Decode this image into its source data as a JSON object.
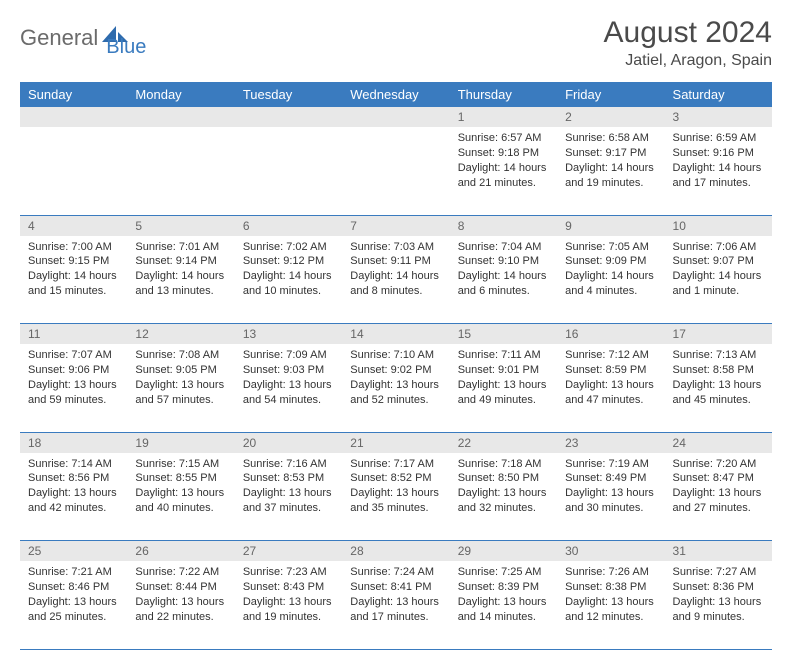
{
  "brand": {
    "part1": "General",
    "part2": "Blue"
  },
  "title": "August 2024",
  "location": "Jatiel, Aragon, Spain",
  "colors": {
    "header_bg": "#3a7bbf",
    "header_text": "#ffffff",
    "daynum_bg": "#e8e8e8",
    "daynum_text": "#666666",
    "border": "#3a7bbf",
    "body_text": "#333333",
    "logo_gray": "#6b6b6b",
    "logo_blue": "#3a7bbf"
  },
  "weekdays": [
    "Sunday",
    "Monday",
    "Tuesday",
    "Wednesday",
    "Thursday",
    "Friday",
    "Saturday"
  ],
  "weeks": [
    [
      null,
      null,
      null,
      null,
      {
        "n": "1",
        "sr": "6:57 AM",
        "ss": "9:18 PM",
        "dl": "14 hours and 21 minutes."
      },
      {
        "n": "2",
        "sr": "6:58 AM",
        "ss": "9:17 PM",
        "dl": "14 hours and 19 minutes."
      },
      {
        "n": "3",
        "sr": "6:59 AM",
        "ss": "9:16 PM",
        "dl": "14 hours and 17 minutes."
      }
    ],
    [
      {
        "n": "4",
        "sr": "7:00 AM",
        "ss": "9:15 PM",
        "dl": "14 hours and 15 minutes."
      },
      {
        "n": "5",
        "sr": "7:01 AM",
        "ss": "9:14 PM",
        "dl": "14 hours and 13 minutes."
      },
      {
        "n": "6",
        "sr": "7:02 AM",
        "ss": "9:12 PM",
        "dl": "14 hours and 10 minutes."
      },
      {
        "n": "7",
        "sr": "7:03 AM",
        "ss": "9:11 PM",
        "dl": "14 hours and 8 minutes."
      },
      {
        "n": "8",
        "sr": "7:04 AM",
        "ss": "9:10 PM",
        "dl": "14 hours and 6 minutes."
      },
      {
        "n": "9",
        "sr": "7:05 AM",
        "ss": "9:09 PM",
        "dl": "14 hours and 4 minutes."
      },
      {
        "n": "10",
        "sr": "7:06 AM",
        "ss": "9:07 PM",
        "dl": "14 hours and 1 minute."
      }
    ],
    [
      {
        "n": "11",
        "sr": "7:07 AM",
        "ss": "9:06 PM",
        "dl": "13 hours and 59 minutes."
      },
      {
        "n": "12",
        "sr": "7:08 AM",
        "ss": "9:05 PM",
        "dl": "13 hours and 57 minutes."
      },
      {
        "n": "13",
        "sr": "7:09 AM",
        "ss": "9:03 PM",
        "dl": "13 hours and 54 minutes."
      },
      {
        "n": "14",
        "sr": "7:10 AM",
        "ss": "9:02 PM",
        "dl": "13 hours and 52 minutes."
      },
      {
        "n": "15",
        "sr": "7:11 AM",
        "ss": "9:01 PM",
        "dl": "13 hours and 49 minutes."
      },
      {
        "n": "16",
        "sr": "7:12 AM",
        "ss": "8:59 PM",
        "dl": "13 hours and 47 minutes."
      },
      {
        "n": "17",
        "sr": "7:13 AM",
        "ss": "8:58 PM",
        "dl": "13 hours and 45 minutes."
      }
    ],
    [
      {
        "n": "18",
        "sr": "7:14 AM",
        "ss": "8:56 PM",
        "dl": "13 hours and 42 minutes."
      },
      {
        "n": "19",
        "sr": "7:15 AM",
        "ss": "8:55 PM",
        "dl": "13 hours and 40 minutes."
      },
      {
        "n": "20",
        "sr": "7:16 AM",
        "ss": "8:53 PM",
        "dl": "13 hours and 37 minutes."
      },
      {
        "n": "21",
        "sr": "7:17 AM",
        "ss": "8:52 PM",
        "dl": "13 hours and 35 minutes."
      },
      {
        "n": "22",
        "sr": "7:18 AM",
        "ss": "8:50 PM",
        "dl": "13 hours and 32 minutes."
      },
      {
        "n": "23",
        "sr": "7:19 AM",
        "ss": "8:49 PM",
        "dl": "13 hours and 30 minutes."
      },
      {
        "n": "24",
        "sr": "7:20 AM",
        "ss": "8:47 PM",
        "dl": "13 hours and 27 minutes."
      }
    ],
    [
      {
        "n": "25",
        "sr": "7:21 AM",
        "ss": "8:46 PM",
        "dl": "13 hours and 25 minutes."
      },
      {
        "n": "26",
        "sr": "7:22 AM",
        "ss": "8:44 PM",
        "dl": "13 hours and 22 minutes."
      },
      {
        "n": "27",
        "sr": "7:23 AM",
        "ss": "8:43 PM",
        "dl": "13 hours and 19 minutes."
      },
      {
        "n": "28",
        "sr": "7:24 AM",
        "ss": "8:41 PM",
        "dl": "13 hours and 17 minutes."
      },
      {
        "n": "29",
        "sr": "7:25 AM",
        "ss": "8:39 PM",
        "dl": "13 hours and 14 minutes."
      },
      {
        "n": "30",
        "sr": "7:26 AM",
        "ss": "8:38 PM",
        "dl": "13 hours and 12 minutes."
      },
      {
        "n": "31",
        "sr": "7:27 AM",
        "ss": "8:36 PM",
        "dl": "13 hours and 9 minutes."
      }
    ]
  ],
  "labels": {
    "sunrise": "Sunrise:",
    "sunset": "Sunset:",
    "daylight": "Daylight:"
  }
}
